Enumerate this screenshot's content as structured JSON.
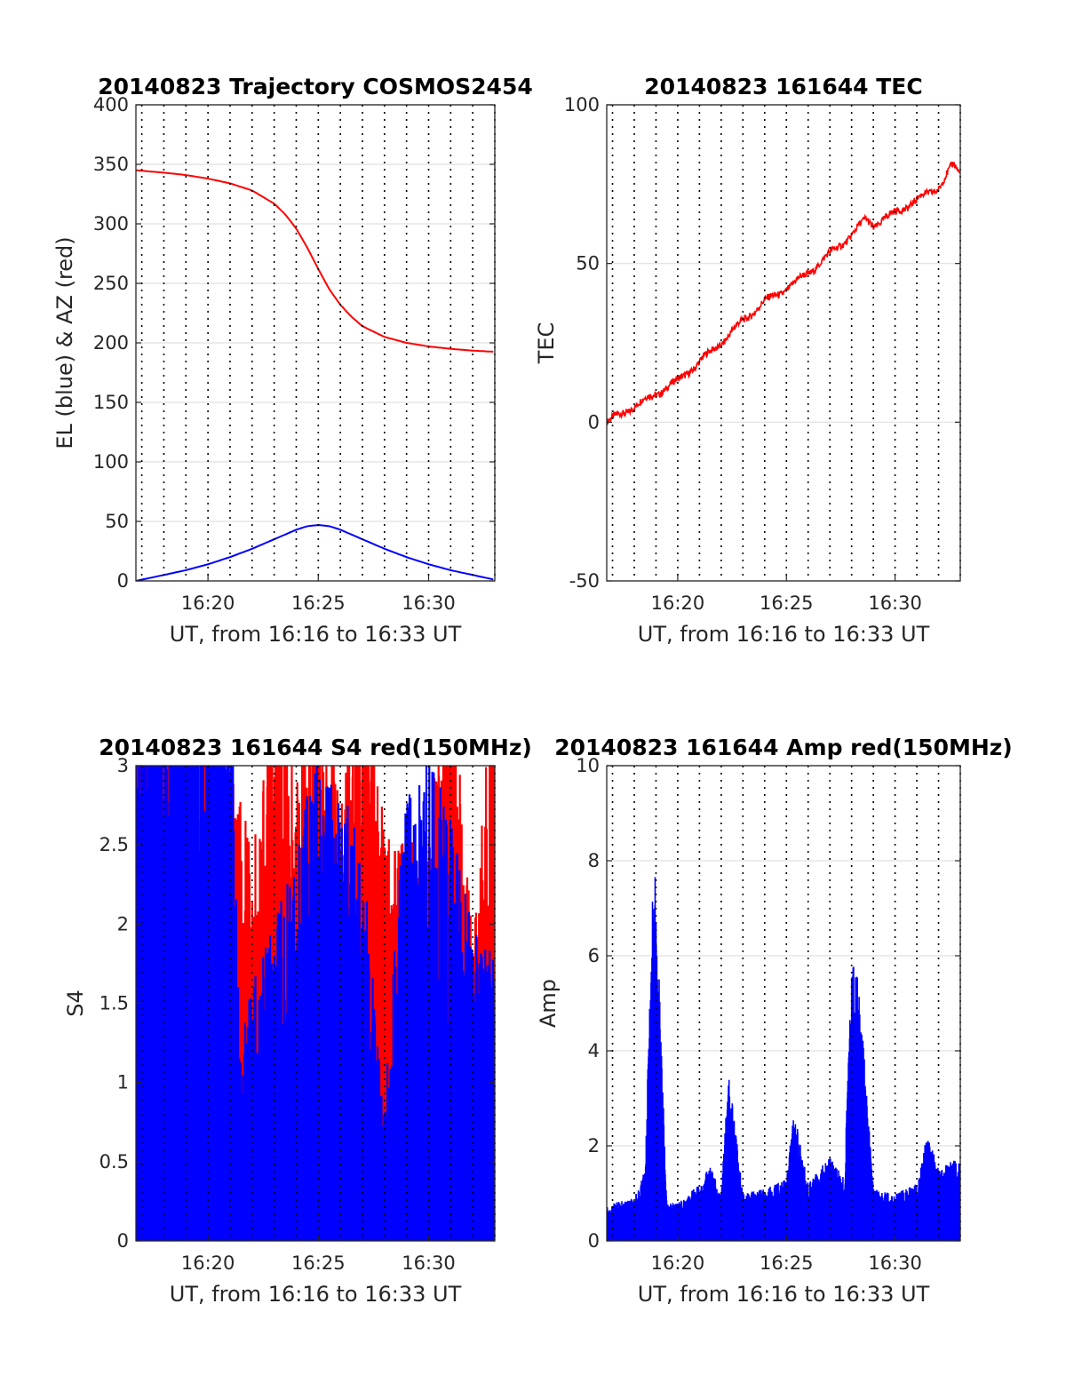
{
  "chart_data": [
    {
      "type": "line",
      "title": "20140823 Trajectory COSMOS2454",
      "xlabel": "UT, from 16:16 to 16:33 UT",
      "ylabel": "EL (blue) & AZ (red)",
      "xlim": [
        "16:16:44",
        "16:33:00"
      ],
      "ylim": [
        0,
        400
      ],
      "yticks": [
        0,
        50,
        100,
        150,
        200,
        250,
        300,
        350,
        400
      ],
      "xticks": [
        "16:20",
        "16:25",
        "16:30"
      ],
      "grid": "y solid, x dotted every minute",
      "series": [
        {
          "color": "#ff0000",
          "x": [
            "16:16:44",
            "16:18",
            "16:19",
            "16:20",
            "16:21",
            "16:22",
            "16:23",
            "16:23:30",
            "16:24",
            "16:24:30",
            "16:25",
            "16:25:30",
            "16:26",
            "16:26:30",
            "16:27",
            "16:28",
            "16:29",
            "16:30",
            "16:31",
            "16:32",
            "16:33"
          ],
          "values": [
            345,
            343,
            341,
            338,
            334,
            328,
            317,
            308,
            296,
            280,
            262,
            245,
            232,
            222,
            214,
            205,
            200,
            197,
            195,
            193.5,
            192.5
          ]
        },
        {
          "color": "#0000ff",
          "x": [
            "16:16:44",
            "16:18",
            "16:19",
            "16:20",
            "16:21",
            "16:22",
            "16:23",
            "16:24",
            "16:24:30",
            "16:25",
            "16:25:30",
            "16:26",
            "16:27",
            "16:28",
            "16:29",
            "16:30",
            "16:31",
            "16:32",
            "16:33"
          ],
          "values": [
            0,
            5,
            9,
            14,
            20,
            27,
            35,
            43,
            46,
            47,
            46,
            43,
            35,
            27,
            20,
            14,
            9,
            5,
            1
          ]
        }
      ]
    },
    {
      "type": "line",
      "title": "20140823 161644 TEC",
      "xlabel": "UT, from 16:16 to 16:33 UT",
      "ylabel": "TEC",
      "xlim": [
        "16:16:44",
        "16:33:00"
      ],
      "ylim": [
        -50,
        100
      ],
      "yticks": [
        -50,
        0,
        50,
        100
      ],
      "xticks": [
        "16:20",
        "16:25",
        "16:30"
      ],
      "grid": "y solid, x dotted every minute",
      "series": [
        {
          "color": "#ff0000",
          "x": [
            "16:16:44",
            "16:17",
            "16:18",
            "16:19",
            "16:20",
            "16:21",
            "16:22",
            "16:23",
            "16:24",
            "16:25",
            "16:26",
            "16:27",
            "16:28",
            "16:28:40",
            "16:29",
            "16:30",
            "16:31",
            "16:32",
            "16:32:40",
            "16:33"
          ],
          "values": [
            0,
            1,
            5,
            9,
            13,
            19,
            25,
            32,
            38,
            42,
            47,
            53,
            59,
            64,
            62,
            66,
            70,
            74,
            81,
            78
          ]
        }
      ]
    },
    {
      "type": "area",
      "title": "20140823 161644 S4 red(150MHz)",
      "xlabel": "UT, from 16:16 to 16:33 UT",
      "ylabel": "S4",
      "xlim": [
        "16:16:44",
        "16:33:00"
      ],
      "ylim": [
        0,
        3
      ],
      "yticks": [
        0,
        0.5,
        1,
        1.5,
        2,
        2.5,
        3
      ],
      "xticks": [
        "16:20",
        "16:25",
        "16:30"
      ],
      "grid": "y solid, x dotted every minute",
      "series": [
        {
          "color": "#ff0000",
          "x": [
            "16:16:44",
            "16:21",
            "16:22",
            "16:23",
            "16:24",
            "16:25",
            "16:26",
            "16:27",
            "16:28",
            "16:29",
            "16:30",
            "16:31",
            "16:32",
            "16:33"
          ],
          "values": [
            3,
            3,
            1.9,
            3,
            2.5,
            3,
            2.2,
            3,
            2.1,
            2.0,
            2.1,
            3,
            1.5,
            3
          ]
        },
        {
          "color": "#0000ff",
          "x": [
            "16:16:44",
            "16:21",
            "16:21:30",
            "16:22",
            "16:23",
            "16:24",
            "16:25",
            "16:26",
            "16:27",
            "16:28",
            "16:29",
            "16:30",
            "16:31",
            "16:32",
            "16:33"
          ],
          "values": [
            3,
            3,
            1.0,
            1.3,
            1.6,
            2.0,
            2.5,
            2.3,
            2.0,
            0.7,
            2.4,
            2.5,
            2.2,
            1.6,
            1.5
          ]
        }
      ]
    },
    {
      "type": "area",
      "title": "20140823 161644 Amp red(150MHz)",
      "xlabel": "UT, from 16:16 to 16:33 UT",
      "ylabel": "Amp",
      "xlim": [
        "16:16:44",
        "16:33:00"
      ],
      "ylim": [
        0,
        10
      ],
      "yticks": [
        0,
        2,
        4,
        6,
        8,
        10
      ],
      "xticks": [
        "16:20",
        "16:25",
        "16:30"
      ],
      "grid": "y solid, x dotted every minute",
      "series": [
        {
          "color": "#0000ff",
          "x": [
            "16:16:44",
            "16:17",
            "16:18",
            "16:18:30",
            "16:18:55",
            "16:19:30",
            "16:20",
            "16:21",
            "16:21:30",
            "16:22",
            "16:22:20",
            "16:23",
            "16:24",
            "16:25",
            "16:25:20",
            "16:26",
            "16:27",
            "16:27:40",
            "16:28",
            "16:28:20",
            "16:29",
            "16:30",
            "16:31",
            "16:31:30",
            "16:32",
            "16:32:40",
            "16:33"
          ],
          "values": [
            0.7,
            0.8,
            0.9,
            1.5,
            8.6,
            0.8,
            0.8,
            1.2,
            1.6,
            1.0,
            3.6,
            1.0,
            1.1,
            1.3,
            2.8,
            1.2,
            1.8,
            1.3,
            5.9,
            5.5,
            1.1,
            1.0,
            1.2,
            2.3,
            1.5,
            1.7,
            1.7
          ]
        }
      ]
    }
  ]
}
